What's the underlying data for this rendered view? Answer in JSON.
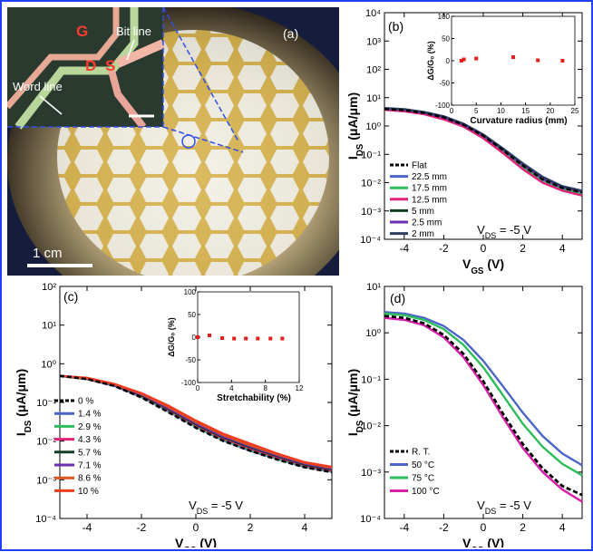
{
  "photo": {
    "panel_label": "(a)",
    "labels": {
      "g": "G",
      "d": "D",
      "s": "S",
      "bit_line": "Bit line",
      "word_line": "Word line"
    },
    "scale_bar": "1 cm"
  },
  "chart_data": [
    {
      "panel": "b",
      "panel_label": "(b)",
      "type": "line",
      "yscale": "log",
      "xlim": [
        -5,
        5
      ],
      "ylim": [
        0.0001,
        10000
      ],
      "xticks": [
        -4,
        -2,
        0,
        2,
        4
      ],
      "yticks": [
        "10⁴",
        "10³",
        "10²",
        "10¹",
        "10⁰",
        "10⁻¹",
        "10⁻²",
        "10⁻³",
        "10⁻⁴"
      ],
      "xlabel": {
        "main": "V",
        "sub": "GS",
        "unit": " (V)"
      },
      "ylabel": {
        "main": "I",
        "sub": "DS",
        "unit": " (μA/μm)"
      },
      "annotation": {
        "main": "V",
        "sub": "DS",
        "rest": " = -5 V"
      },
      "legend": "left",
      "series": [
        {
          "name": "Flat",
          "color": "#000000",
          "dash": true,
          "x": [
            -5,
            -4,
            -3,
            -2,
            -1,
            0,
            1,
            2,
            3,
            4,
            5
          ],
          "y": [
            4.0,
            3.6,
            2.9,
            2.0,
            1.1,
            0.45,
            0.14,
            0.04,
            0.013,
            0.0065,
            0.0045
          ]
        },
        {
          "name": "22.5 mm",
          "color": "#4a64c8",
          "x": [
            -5,
            -4,
            -3,
            -2,
            -1,
            0,
            1,
            2,
            3,
            4,
            5
          ],
          "y": [
            4.0,
            3.6,
            2.9,
            2.0,
            1.1,
            0.45,
            0.14,
            0.04,
            0.013,
            0.0065,
            0.0045
          ]
        },
        {
          "name": "17.5 mm",
          "color": "#2ebd5b",
          "x": [
            -5,
            -4,
            -3,
            -2,
            -1,
            0,
            1,
            2,
            3,
            4,
            5
          ],
          "y": [
            3.8,
            3.4,
            2.7,
            1.8,
            1.0,
            0.4,
            0.12,
            0.035,
            0.011,
            0.0058,
            0.004
          ]
        },
        {
          "name": "12.5 mm",
          "color": "#e2227a",
          "x": [
            -5,
            -4,
            -3,
            -2,
            -1,
            0,
            1,
            2,
            3,
            4,
            5
          ],
          "y": [
            3.7,
            3.3,
            2.6,
            1.7,
            0.95,
            0.37,
            0.11,
            0.03,
            0.01,
            0.0052,
            0.0035
          ]
        },
        {
          "name": "5 mm",
          "color": "#123d23",
          "x": [
            -5,
            -4,
            -3,
            -2,
            -1,
            0,
            1,
            2,
            3,
            4,
            5
          ],
          "y": [
            4.2,
            3.8,
            3.0,
            2.1,
            1.15,
            0.48,
            0.15,
            0.045,
            0.015,
            0.007,
            0.005
          ]
        },
        {
          "name": "2.5 mm",
          "color": "#6b2fb3",
          "x": [
            -5,
            -4,
            -3,
            -2,
            -1,
            0,
            1,
            2,
            3,
            4,
            5
          ],
          "y": [
            4.1,
            3.7,
            2.95,
            2.05,
            1.1,
            0.46,
            0.145,
            0.042,
            0.014,
            0.0068,
            0.0048
          ]
        },
        {
          "name": "2 mm",
          "color": "#2c3e63",
          "x": [
            -5,
            -4,
            -3,
            -2,
            -1,
            0,
            1,
            2,
            3,
            4,
            5
          ],
          "y": [
            4.3,
            3.9,
            3.1,
            2.2,
            1.2,
            0.5,
            0.16,
            0.048,
            0.016,
            0.0075,
            0.0052
          ]
        }
      ],
      "inset": {
        "type": "scatter",
        "xlabel": "Curvature radius (mm)",
        "ylabel": "ΔG/G₀ (%)",
        "xlim": [
          0,
          25
        ],
        "ylim": [
          -100,
          100
        ],
        "xticks": [
          0,
          5,
          10,
          15,
          20,
          25
        ],
        "yticks": [
          100,
          50,
          0,
          -50,
          -100
        ],
        "color": "#e81c1c",
        "x": [
          2,
          2.5,
          5,
          12.5,
          17.5,
          22.5
        ],
        "y": [
          0,
          3,
          5,
          8,
          1,
          0
        ]
      }
    },
    {
      "panel": "c",
      "panel_label": "(c)",
      "type": "line",
      "yscale": "log",
      "xlim": [
        -5,
        5
      ],
      "ylim": [
        0.0001,
        1000
      ],
      "xticks": [
        -4,
        -2,
        0,
        2,
        4
      ],
      "yticks": [
        "10²",
        "10¹",
        "10⁰",
        "10⁻¹",
        "10⁻²",
        "10⁻³",
        "10⁻⁴"
      ],
      "xlabel": {
        "main": "V",
        "sub": "GS",
        "unit": " (V)"
      },
      "ylabel": {
        "main": "I",
        "sub": "DS",
        "unit": " (μA/μm)"
      },
      "annotation": {
        "main": "V",
        "sub": "DS",
        "rest": " = -5 V"
      },
      "legend": "left",
      "series": [
        {
          "name": "0 %",
          "color": "#000000",
          "dash": true,
          "x": [
            -5,
            -4,
            -3,
            -2,
            -1,
            0,
            1,
            2,
            3,
            4,
            5
          ],
          "y": [
            2.0,
            1.6,
            1.0,
            0.45,
            0.16,
            0.055,
            0.022,
            0.011,
            0.006,
            0.0035,
            0.0025
          ]
        },
        {
          "name": "1.4 %",
          "color": "#4a64c8",
          "x": [
            -5,
            -4,
            -3,
            -2,
            -1,
            0,
            1,
            2,
            3,
            4,
            5
          ],
          "y": [
            2.0,
            1.6,
            1.0,
            0.46,
            0.17,
            0.058,
            0.023,
            0.011,
            0.0062,
            0.0036,
            0.0026
          ]
        },
        {
          "name": "2.9 %",
          "color": "#2ebd5b",
          "x": [
            -5,
            -4,
            -3,
            -2,
            -1,
            0,
            1,
            2,
            3,
            4,
            5
          ],
          "y": [
            2.0,
            1.6,
            1.05,
            0.48,
            0.18,
            0.06,
            0.024,
            0.012,
            0.0065,
            0.0038,
            0.0027
          ]
        },
        {
          "name": "4.3 %",
          "color": "#e2227a",
          "x": [
            -5,
            -4,
            -3,
            -2,
            -1,
            0,
            1,
            2,
            3,
            4,
            5
          ],
          "y": [
            2.0,
            1.65,
            1.05,
            0.5,
            0.19,
            0.065,
            0.026,
            0.013,
            0.007,
            0.004,
            0.0028
          ]
        },
        {
          "name": "5.7 %",
          "color": "#123d23",
          "x": [
            -5,
            -4,
            -3,
            -2,
            -1,
            0,
            1,
            2,
            3,
            4,
            5
          ],
          "y": [
            2.0,
            1.65,
            1.08,
            0.52,
            0.2,
            0.07,
            0.028,
            0.014,
            0.0075,
            0.0042,
            0.003
          ]
        },
        {
          "name": "7.1 %",
          "color": "#6b2fb3",
          "x": [
            -5,
            -4,
            -3,
            -2,
            -1,
            0,
            1,
            2,
            3,
            4,
            5
          ],
          "y": [
            2.0,
            1.7,
            1.1,
            0.55,
            0.21,
            0.075,
            0.03,
            0.015,
            0.008,
            0.0045,
            0.0032
          ]
        },
        {
          "name": "8.6 %",
          "color": "#d9551b",
          "x": [
            -5,
            -4,
            -3,
            -2,
            -1,
            0,
            1,
            2,
            3,
            4,
            5
          ],
          "y": [
            2.0,
            1.7,
            1.12,
            0.58,
            0.23,
            0.082,
            0.033,
            0.016,
            0.0085,
            0.0048,
            0.0034
          ]
        },
        {
          "name": "10 %",
          "color": "#f03c1e",
          "x": [
            -5,
            -4,
            -3,
            -2,
            -1,
            0,
            1,
            2,
            3,
            4,
            5
          ],
          "y": [
            2.0,
            1.75,
            1.15,
            0.6,
            0.25,
            0.09,
            0.036,
            0.018,
            0.009,
            0.005,
            0.0036
          ]
        }
      ],
      "inset": {
        "type": "scatter",
        "xlabel": "Stretchability (%)",
        "ylabel": "ΔG/G₀ (%)",
        "xlim": [
          0,
          12
        ],
        "ylim": [
          -100,
          100
        ],
        "xticks": [
          0,
          4,
          8,
          12
        ],
        "yticks": [
          100,
          50,
          0,
          -50,
          -100
        ],
        "color": "#e81c1c",
        "x": [
          0,
          1.4,
          2.9,
          4.3,
          5.7,
          7.1,
          8.6,
          10
        ],
        "y": [
          0,
          4,
          -2,
          -3,
          -3,
          -3,
          -3,
          -3
        ]
      }
    },
    {
      "panel": "d",
      "panel_label": "(d)",
      "type": "line",
      "yscale": "log",
      "xlim": [
        -5,
        5
      ],
      "ylim": [
        0.0001,
        10
      ],
      "xticks": [
        -4,
        -2,
        0,
        2,
        4
      ],
      "yticks": [
        "10¹",
        "10⁰",
        "10⁻¹",
        "10⁻²",
        "10⁻³",
        "10⁻⁴"
      ],
      "xlabel": {
        "main": "V",
        "sub": "GS",
        "unit": " (V)"
      },
      "ylabel": {
        "main": "I",
        "sub": "DS",
        "unit": " (μA/μm)"
      },
      "annotation": {
        "main": "V",
        "sub": "DS",
        "rest": " = -5 V"
      },
      "legend": "lower-left",
      "series": [
        {
          "name": "R. T.",
          "color": "#000000",
          "dash": true,
          "x": [
            -5,
            -4,
            -3,
            -2,
            -1,
            0,
            1,
            2,
            3,
            4,
            5
          ],
          "y": [
            2.3,
            2.1,
            1.6,
            0.9,
            0.35,
            0.09,
            0.018,
            0.004,
            0.0012,
            0.0005,
            0.00032
          ]
        },
        {
          "name": "50 °C",
          "color": "#4a64c8",
          "x": [
            -5,
            -4,
            -3,
            -2,
            -1,
            0,
            1,
            2,
            3,
            4,
            5
          ],
          "y": [
            2.8,
            2.6,
            2.1,
            1.4,
            0.7,
            0.25,
            0.07,
            0.019,
            0.006,
            0.0025,
            0.0014
          ]
        },
        {
          "name": "75 °C",
          "color": "#2ebd5b",
          "x": [
            -5,
            -4,
            -3,
            -2,
            -1,
            0,
            1,
            2,
            3,
            4,
            5
          ],
          "y": [
            2.6,
            2.4,
            1.9,
            1.2,
            0.55,
            0.18,
            0.045,
            0.011,
            0.0035,
            0.0015,
            0.00085
          ]
        },
        {
          "name": "100 °C",
          "color": "#d81ea8",
          "x": [
            -5,
            -4,
            -3,
            -2,
            -1,
            0,
            1,
            2,
            3,
            4,
            5
          ],
          "y": [
            2.1,
            1.9,
            1.45,
            0.8,
            0.3,
            0.075,
            0.015,
            0.0033,
            0.001,
            0.00042,
            0.00023
          ]
        }
      ]
    }
  ]
}
